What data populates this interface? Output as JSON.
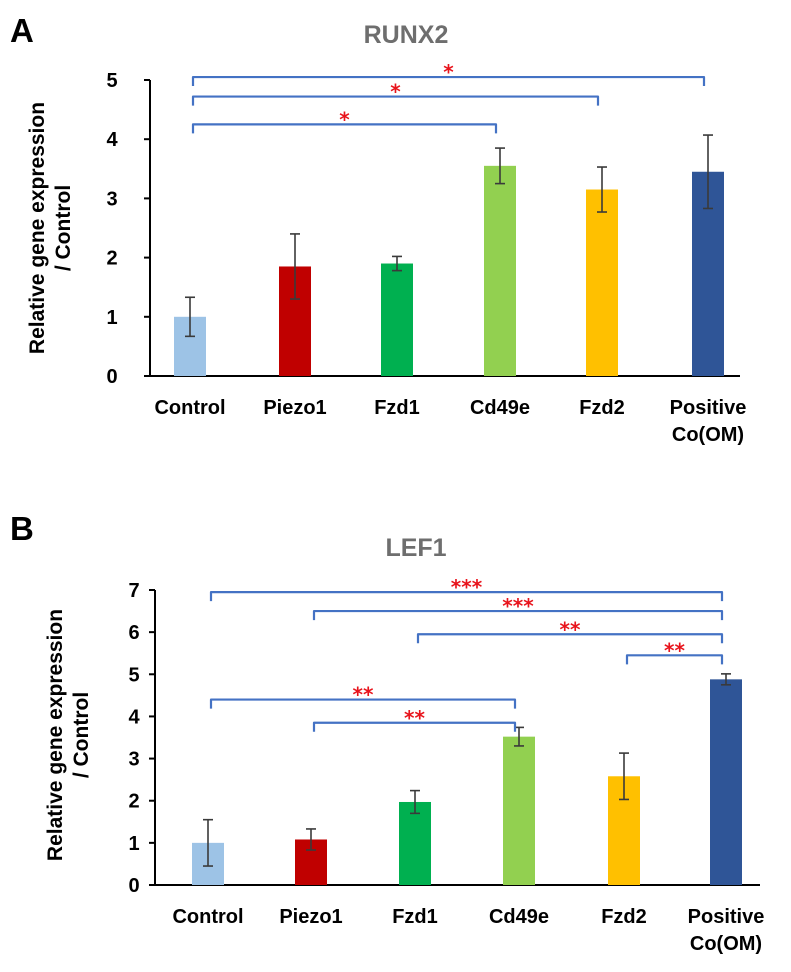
{
  "chart_data": [
    {
      "panel": "A",
      "type": "bar",
      "title": "RUNX2",
      "ylabel": "Relative gene expression / Control",
      "ylabel_lines": [
        "Relative gene expression",
        "/ Control"
      ],
      "xlabel": "",
      "ylim": [
        0,
        5
      ],
      "yticks": [
        0,
        1,
        2,
        3,
        4,
        5
      ],
      "categories": [
        "Control",
        "Piezo1",
        "Fzd1",
        "Cd49e",
        "Fzd2",
        "Positive Co(OM)"
      ],
      "category_lines": [
        [
          "Control"
        ],
        [
          "Piezo1"
        ],
        [
          "Fzd1"
        ],
        [
          "Cd49e"
        ],
        [
          "Fzd2"
        ],
        [
          "Positive",
          "Co(OM)"
        ]
      ],
      "values": [
        1.0,
        1.85,
        1.9,
        3.55,
        3.15,
        3.45
      ],
      "errors": [
        0.33,
        0.55,
        0.12,
        0.3,
        0.38,
        0.62
      ],
      "colors": [
        "#9dc3e6",
        "#c00000",
        "#00b050",
        "#92d050",
        "#ffc000",
        "#2f5597"
      ],
      "significance": [
        {
          "from": 0,
          "to": 5,
          "label": "*",
          "y": 5.05
        },
        {
          "from": 0,
          "to": 4,
          "label": "*",
          "y": 4.72
        },
        {
          "from": 0,
          "to": 3,
          "label": "*",
          "y": 4.25
        }
      ]
    },
    {
      "panel": "B",
      "type": "bar",
      "title": "LEF1",
      "ylabel": "Relative gene expression / Control",
      "ylabel_lines": [
        "Relative gene expression",
        "/ Control"
      ],
      "xlabel": "",
      "ylim": [
        0,
        7
      ],
      "yticks": [
        0,
        1,
        2,
        3,
        4,
        5,
        6,
        7
      ],
      "categories": [
        "Control",
        "Piezo1",
        "Fzd1",
        "Cd49e",
        "Fzd2",
        "Positive Co(OM)"
      ],
      "category_lines": [
        [
          "Control"
        ],
        [
          "Piezo1"
        ],
        [
          "Fzd1"
        ],
        [
          "Cd49e"
        ],
        [
          "Fzd2"
        ],
        [
          "Positive",
          "Co(OM)"
        ]
      ],
      "values": [
        1.0,
        1.08,
        1.97,
        3.52,
        2.58,
        4.88
      ],
      "errors": [
        0.55,
        0.25,
        0.27,
        0.22,
        0.55,
        0.13
      ],
      "colors": [
        "#9dc3e6",
        "#c00000",
        "#00b050",
        "#92d050",
        "#ffc000",
        "#2f5597"
      ],
      "significance": [
        {
          "from": 0,
          "to": 5,
          "label": "***",
          "y": 6.95
        },
        {
          "from": 1,
          "to": 5,
          "label": "***",
          "y": 6.5
        },
        {
          "from": 2,
          "to": 5,
          "label": "**",
          "y": 5.95
        },
        {
          "from": 4,
          "to": 5,
          "label": "**",
          "y": 5.45
        },
        {
          "from": 0,
          "to": 3,
          "label": "**",
          "y": 4.4
        },
        {
          "from": 1,
          "to": 3,
          "label": "**",
          "y": 3.85
        }
      ]
    }
  ]
}
